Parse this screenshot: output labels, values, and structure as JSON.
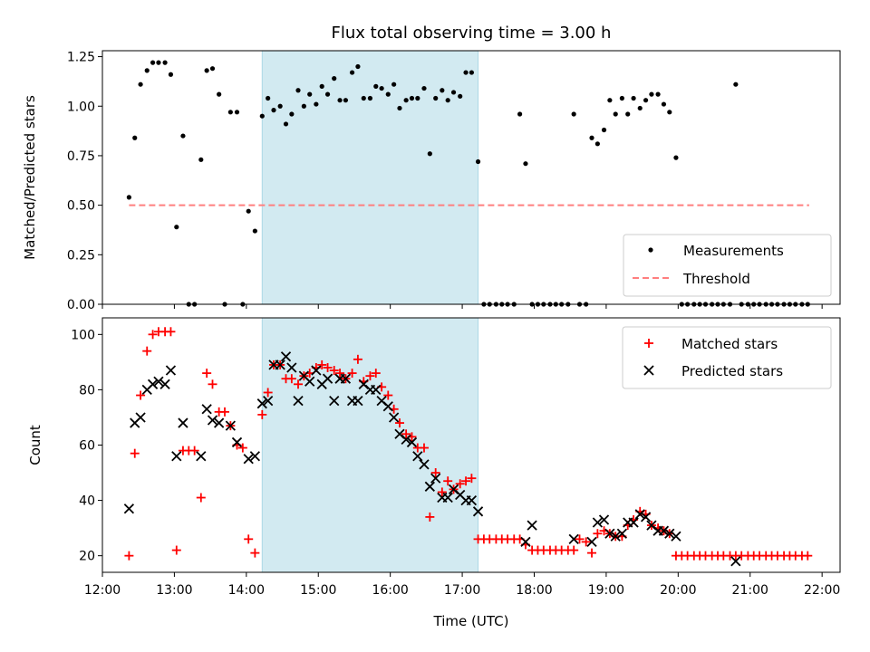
{
  "colors": {
    "window": "#add8e6",
    "measurement": "#000000",
    "threshold": "#ff7f7f",
    "matched": "#ff0000",
    "predicted": "#000000"
  },
  "chart_data": [
    {
      "type": "scatter",
      "title": "Flux total observing time = 3.00 h",
      "xlabel": "",
      "ylabel": "Matched/Predicted stars",
      "x_unit": "hours (UTC)",
      "xlim": [
        12.0,
        22.25
      ],
      "ylim": [
        0.0,
        1.28
      ],
      "yticks": [
        0.0,
        0.25,
        0.5,
        0.75,
        1.0,
        1.25
      ],
      "ytick_labels": [
        "0.00",
        "0.25",
        "0.50",
        "0.75",
        "1.00",
        "1.25"
      ],
      "shaded_window": [
        14.22,
        17.22
      ],
      "legend": {
        "placement": "lower right",
        "entries": [
          "Measurements",
          "Threshold"
        ]
      },
      "threshold": {
        "name": "Threshold",
        "y": 0.5,
        "x_range": [
          12.37,
          21.82
        ]
      },
      "series": [
        {
          "name": "Measurements",
          "x": [
            12.37,
            12.45,
            12.53,
            12.62,
            12.7,
            12.78,
            12.87,
            12.95,
            13.03,
            13.12,
            13.2,
            13.28,
            13.37,
            13.45,
            13.53,
            13.62,
            13.7,
            13.78,
            13.87,
            13.95,
            14.03,
            14.12,
            14.22,
            14.3,
            14.38,
            14.47,
            14.55,
            14.63,
            14.72,
            14.8,
            14.88,
            14.97,
            15.05,
            15.13,
            15.22,
            15.3,
            15.38,
            15.47,
            15.55,
            15.63,
            15.72,
            15.8,
            15.88,
            15.97,
            16.05,
            16.13,
            16.22,
            16.3,
            16.38,
            16.47,
            16.55,
            16.63,
            16.72,
            16.8,
            16.88,
            16.97,
            17.05,
            17.13,
            17.22,
            17.3,
            17.38,
            17.47,
            17.55,
            17.63,
            17.72,
            17.8,
            17.88,
            17.97,
            18.05,
            18.13,
            18.22,
            18.3,
            18.38,
            18.47,
            18.55,
            18.63,
            18.72,
            18.8,
            18.88,
            18.97,
            19.05,
            19.13,
            19.22,
            19.3,
            19.38,
            19.47,
            19.55,
            19.63,
            19.72,
            19.8,
            19.88,
            19.97,
            20.05,
            20.13,
            20.22,
            20.3,
            20.38,
            20.47,
            20.55,
            20.63,
            20.72,
            20.8,
            20.88,
            20.97,
            21.05,
            21.13,
            21.22,
            21.3,
            21.38,
            21.47,
            21.55,
            21.63,
            21.72,
            21.8
          ],
          "y": [
            0.54,
            0.84,
            1.11,
            1.18,
            1.22,
            1.22,
            1.22,
            1.16,
            0.39,
            0.85,
            0.0,
            0.0,
            0.73,
            1.18,
            1.19,
            1.06,
            0.0,
            0.97,
            0.97,
            0.0,
            0.47,
            0.37,
            0.95,
            1.04,
            0.98,
            1.0,
            0.91,
            0.96,
            1.08,
            1.0,
            1.06,
            1.01,
            1.1,
            1.06,
            1.14,
            1.03,
            1.03,
            1.17,
            1.2,
            1.04,
            1.04,
            1.1,
            1.09,
            1.06,
            1.11,
            0.99,
            1.03,
            1.04,
            1.04,
            1.09,
            0.76,
            1.04,
            1.08,
            1.03,
            1.07,
            1.05,
            1.17,
            1.17,
            0.72,
            0.0,
            0.0,
            0.0,
            0.0,
            0.0,
            0.0,
            0.96,
            0.71,
            0.0,
            0.0,
            0.0,
            0.0,
            0.0,
            0.0,
            0.0,
            0.96,
            0.0,
            0.0,
            0.84,
            0.81,
            0.88,
            1.03,
            0.96,
            1.04,
            0.96,
            1.04,
            0.99,
            1.03,
            1.06,
            1.06,
            1.01,
            0.97,
            0.74,
            0.0,
            0.0,
            0.0,
            0.0,
            0.0,
            0.0,
            0.0,
            0.0,
            0.0,
            1.11,
            0.0,
            0.0,
            0.0,
            0.0,
            0.0,
            0.0,
            0.0,
            0.0,
            0.0,
            0.0,
            0.0,
            0.0
          ]
        }
      ]
    },
    {
      "type": "scatter",
      "title": "",
      "xlabel": "Time (UTC)",
      "ylabel": "Count",
      "x_unit": "hours (UTC)",
      "xlim": [
        12.0,
        22.25
      ],
      "ylim": [
        14,
        106
      ],
      "xticks": [
        12,
        13,
        14,
        15,
        16,
        17,
        18,
        19,
        20,
        21,
        22
      ],
      "xtick_labels": [
        "12:00",
        "13:00",
        "14:00",
        "15:00",
        "16:00",
        "17:00",
        "18:00",
        "19:00",
        "20:00",
        "21:00",
        "22:00"
      ],
      "yticks": [
        20,
        40,
        60,
        80,
        100
      ],
      "ytick_labels": [
        "20",
        "40",
        "60",
        "80",
        "100"
      ],
      "shaded_window": [
        14.22,
        17.22
      ],
      "legend": {
        "placement": "upper right",
        "entries": [
          "Matched stars",
          "Predicted stars"
        ]
      },
      "series": [
        {
          "name": "Matched stars",
          "marker": "+",
          "x": [
            12.37,
            12.45,
            12.53,
            12.62,
            12.7,
            12.78,
            12.87,
            12.95,
            13.03,
            13.12,
            13.2,
            13.28,
            13.37,
            13.45,
            13.53,
            13.62,
            13.7,
            13.78,
            13.87,
            13.95,
            14.03,
            14.12,
            14.22,
            14.3,
            14.38,
            14.47,
            14.55,
            14.63,
            14.72,
            14.8,
            14.88,
            14.97,
            15.05,
            15.13,
            15.22,
            15.3,
            15.38,
            15.47,
            15.55,
            15.63,
            15.72,
            15.8,
            15.88,
            15.97,
            16.05,
            16.13,
            16.22,
            16.3,
            16.38,
            16.47,
            16.55,
            16.63,
            16.72,
            16.8,
            16.88,
            16.97,
            17.05,
            17.13,
            17.22,
            17.3,
            17.38,
            17.47,
            17.55,
            17.63,
            17.72,
            17.8,
            17.88,
            17.97,
            18.05,
            18.13,
            18.22,
            18.3,
            18.38,
            18.47,
            18.55,
            18.63,
            18.72,
            18.8,
            18.88,
            18.97,
            19.05,
            19.13,
            19.22,
            19.3,
            19.38,
            19.47,
            19.55,
            19.63,
            19.72,
            19.8,
            19.88,
            19.97,
            20.05,
            20.13,
            20.22,
            20.3,
            20.38,
            20.47,
            20.55,
            20.63,
            20.72,
            20.8,
            20.88,
            20.97,
            21.05,
            21.13,
            21.22,
            21.3,
            21.38,
            21.47,
            21.55,
            21.63,
            21.72,
            21.8
          ],
          "y": [
            20,
            57,
            78,
            94,
            100,
            101,
            101,
            101,
            22,
            58,
            58,
            58,
            41,
            86,
            82,
            72,
            72,
            67,
            60,
            59,
            26,
            21,
            71,
            79,
            89,
            89,
            84,
            84,
            82,
            85,
            86,
            88,
            89,
            88,
            87,
            86,
            84,
            86,
            91,
            83,
            85,
            86,
            81,
            78,
            73,
            68,
            64,
            63,
            59,
            59,
            34,
            50,
            43,
            47,
            44,
            46,
            47,
            48,
            26,
            26,
            26,
            26,
            26,
            26,
            26,
            26,
            24,
            22,
            22,
            22,
            22,
            22,
            22,
            22,
            22,
            26,
            25,
            21,
            28,
            29,
            28,
            27,
            27,
            31,
            33,
            36,
            35,
            31,
            30,
            29,
            28,
            20,
            20,
            20,
            20,
            20,
            20,
            20,
            20,
            20,
            20,
            20,
            20,
            20,
            20,
            20,
            20,
            20,
            20,
            20,
            20,
            20,
            20,
            20
          ]
        },
        {
          "name": "Predicted stars",
          "marker": "x",
          "x": [
            12.37,
            12.45,
            12.53,
            12.62,
            12.7,
            12.78,
            12.87,
            12.95,
            13.03,
            13.12,
            13.37,
            13.45,
            13.53,
            13.62,
            13.78,
            13.87,
            14.03,
            14.12,
            14.22,
            14.3,
            14.38,
            14.47,
            14.55,
            14.63,
            14.72,
            14.8,
            14.88,
            14.97,
            15.05,
            15.13,
            15.22,
            15.3,
            15.38,
            15.47,
            15.55,
            15.63,
            15.72,
            15.8,
            15.88,
            15.97,
            16.05,
            16.13,
            16.22,
            16.3,
            16.38,
            16.47,
            16.55,
            16.63,
            16.72,
            16.8,
            16.88,
            16.97,
            17.05,
            17.13,
            17.22,
            17.88,
            17.97,
            18.55,
            18.8,
            18.88,
            18.97,
            19.05,
            19.13,
            19.22,
            19.3,
            19.38,
            19.47,
            19.55,
            19.63,
            19.72,
            19.8,
            19.88,
            19.97,
            20.8
          ],
          "y": [
            37,
            68,
            70,
            80,
            82,
            83,
            82,
            87,
            56,
            68,
            56,
            73,
            69,
            68,
            67,
            61,
            55,
            56,
            75,
            76,
            89,
            89,
            92,
            88,
            76,
            85,
            83,
            87,
            82,
            84,
            76,
            84,
            84,
            76,
            76,
            82,
            80,
            80,
            76,
            74,
            70,
            64,
            62,
            61,
            56,
            53,
            45,
            48,
            41,
            41,
            44,
            42,
            40,
            40,
            36,
            25,
            31,
            26,
            25,
            32,
            33,
            28,
            27,
            28,
            32,
            32,
            35,
            34,
            31,
            29,
            29,
            28,
            27,
            18
          ]
        }
      ]
    }
  ]
}
